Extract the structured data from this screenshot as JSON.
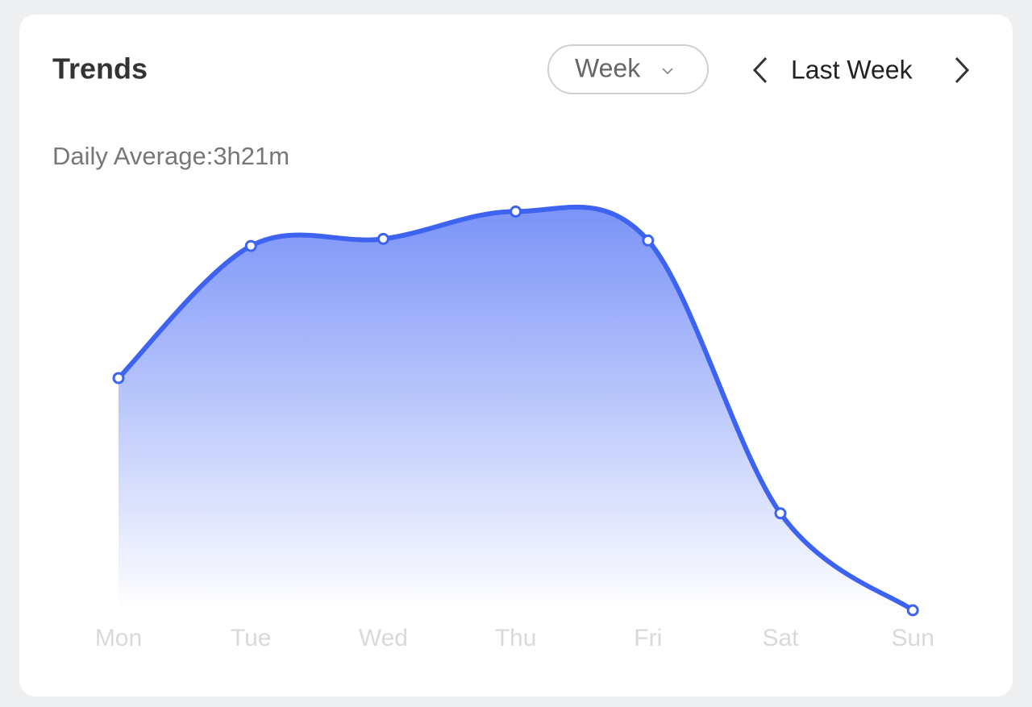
{
  "header": {
    "title": "Trends",
    "range_select": "Week",
    "period": "Last Week"
  },
  "summary": "Daily Average:3h21m",
  "chart_data": {
    "type": "area",
    "categories": [
      "Mon",
      "Tue",
      "Wed",
      "Thu",
      "Fri",
      "Sat",
      "Sun"
    ],
    "series": [
      {
        "color": "#3d63f0",
        "values": [
          2.97,
          4.66,
          4.75,
          5.1,
          4.73,
          1.24,
          0
        ]
      }
    ],
    "ylim": [
      0,
      5.3
    ]
  }
}
